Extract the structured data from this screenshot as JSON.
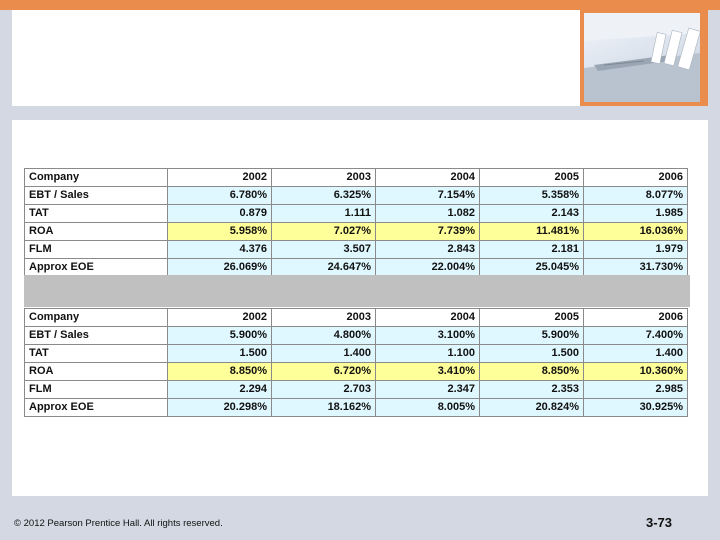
{
  "table1": {
    "headers": [
      "Company",
      "2002",
      "2003",
      "2004",
      "2005",
      "2006"
    ],
    "rows": [
      [
        "EBT / Sales",
        "6.780%",
        "6.325%",
        "7.154%",
        "5.358%",
        "8.077%"
      ],
      [
        "TAT",
        "0.879",
        "1.111",
        "1.082",
        "2.143",
        "1.985"
      ],
      [
        "ROA",
        "5.958%",
        "7.027%",
        "7.739%",
        "11.481%",
        "16.036%"
      ],
      [
        "FLM",
        "4.376",
        "3.507",
        "2.843",
        "2.181",
        "1.979"
      ],
      [
        "Approx EOE",
        "26.069%",
        "24.647%",
        "22.004%",
        "25.045%",
        "31.730%"
      ]
    ]
  },
  "table2": {
    "headers": [
      "Company",
      "2002",
      "2003",
      "2004",
      "2005",
      "2006"
    ],
    "rows": [
      [
        "EBT / Sales",
        "5.900%",
        "4.800%",
        "3.100%",
        "5.900%",
        "7.400%"
      ],
      [
        "TAT",
        "1.500",
        "1.400",
        "1.100",
        "1.500",
        "1.400"
      ],
      [
        "ROA",
        "8.850%",
        "6.720%",
        "3.410%",
        "8.850%",
        "10.360%"
      ],
      [
        "FLM",
        "2.294",
        "2.703",
        "2.347",
        "2.353",
        "2.985"
      ],
      [
        "Approx EOE",
        "20.298%",
        "18.162%",
        "8.005%",
        "20.824%",
        "30.925%"
      ]
    ]
  },
  "footer": {
    "copyright": "© 2012 Pearson Prentice Hall. All rights reserved.",
    "page_number": "3-73"
  },
  "colors": {
    "accent_orange": "#e98c4c",
    "cell_blue": "#dff8ff",
    "roa_yellow": "#ffff99",
    "separator_gray": "#c0c0c0"
  }
}
